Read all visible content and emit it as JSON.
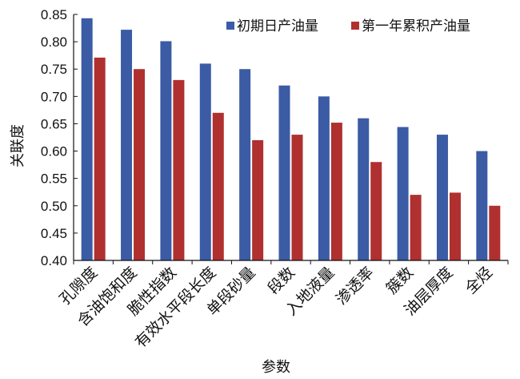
{
  "chart_data": {
    "type": "bar",
    "xlabel": "参数",
    "ylabel": "关联度",
    "ylim": [
      0.4,
      0.85
    ],
    "yticks": [
      "0.40",
      "0.45",
      "0.50",
      "0.55",
      "0.60",
      "0.65",
      "0.70",
      "0.75",
      "0.80",
      "0.85"
    ],
    "categories": [
      "孔隙度",
      "含油饱和度",
      "脆性指数",
      "有效水平段长度",
      "单段砂量",
      "段数",
      "入地液量",
      "渗透率",
      "簇数",
      "油层厚度",
      "全烃"
    ],
    "series": [
      {
        "name": "初期日产油量",
        "color": "#3B5BA5",
        "values": [
          0.843,
          0.822,
          0.801,
          0.76,
          0.75,
          0.72,
          0.7,
          0.66,
          0.644,
          0.63,
          0.6
        ]
      },
      {
        "name": "第一年累积产油量",
        "color": "#B03030",
        "values": [
          0.771,
          0.75,
          0.73,
          0.67,
          0.62,
          0.63,
          0.652,
          0.58,
          0.52,
          0.524,
          0.5
        ]
      }
    ],
    "legend_position": "top-right",
    "grid": false
  }
}
